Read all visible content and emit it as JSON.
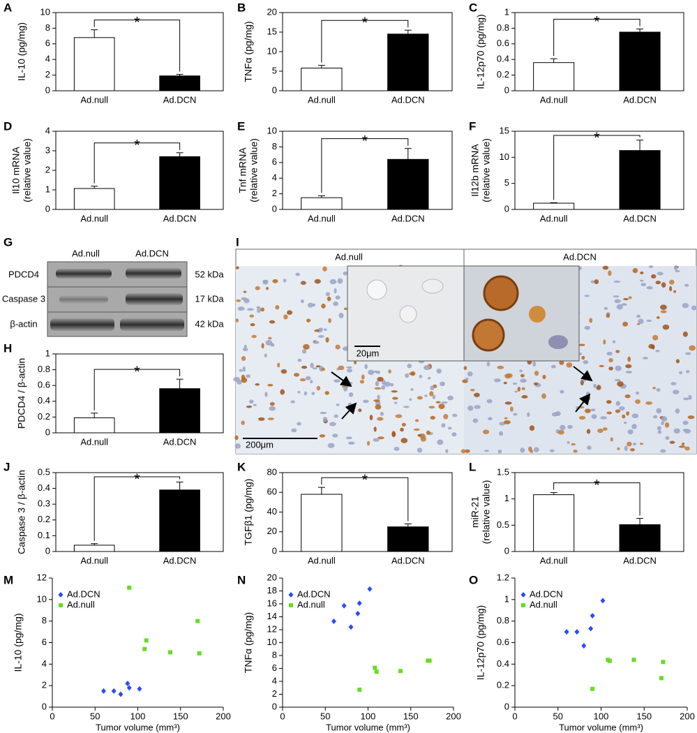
{
  "chart_data": [
    {
      "panel": "A",
      "type": "bar",
      "ylabel": [
        "IL-10 (pg/mg)"
      ],
      "categories": [
        "Ad.null",
        "Ad.DCN"
      ],
      "values": [
        6.8,
        1.9
      ],
      "errors": [
        1.0,
        0.2
      ],
      "colors": [
        "#ffffff",
        "#000000"
      ],
      "ylim": [
        0,
        10
      ],
      "yticks": [
        0,
        2,
        4,
        6,
        8,
        10
      ],
      "annotation": "*"
    },
    {
      "panel": "B",
      "type": "bar",
      "ylabel": [
        "TNFα (pg/mg)"
      ],
      "categories": [
        "Ad.null",
        "Ad.DCN"
      ],
      "values": [
        5.8,
        14.5
      ],
      "errors": [
        0.7,
        1.0
      ],
      "colors": [
        "#ffffff",
        "#000000"
      ],
      "ylim": [
        0,
        20
      ],
      "yticks": [
        0,
        5,
        10,
        15,
        20
      ],
      "annotation": "*"
    },
    {
      "panel": "C",
      "type": "bar",
      "ylabel": [
        "IL-12p70 (pg/mg)"
      ],
      "categories": [
        "Ad.null",
        "Ad.DCN"
      ],
      "values": [
        0.36,
        0.75
      ],
      "errors": [
        0.05,
        0.04
      ],
      "colors": [
        "#ffffff",
        "#000000"
      ],
      "ylim": [
        0,
        1
      ],
      "yticks": [
        0,
        0.2,
        0.4,
        0.6,
        0.8,
        1
      ],
      "annotation": "*"
    },
    {
      "panel": "D",
      "type": "bar",
      "ylabel": [
        "Il10 mRNA",
        "(relative value)"
      ],
      "categories": [
        "Ad.null",
        "Ad.DCN"
      ],
      "values": [
        1.07,
        2.7
      ],
      "errors": [
        0.12,
        0.2
      ],
      "colors": [
        "#ffffff",
        "#000000"
      ],
      "ylim": [
        0,
        4
      ],
      "yticks": [
        0,
        1,
        2,
        3,
        4
      ],
      "annotation": "*"
    },
    {
      "panel": "E",
      "type": "bar",
      "ylabel": [
        "Tnf mRNA",
        "(relative value)"
      ],
      "categories": [
        "Ad.null",
        "Ad.DCN"
      ],
      "values": [
        1.5,
        6.4
      ],
      "errors": [
        0.25,
        1.4
      ],
      "colors": [
        "#ffffff",
        "#000000"
      ],
      "ylim": [
        0,
        10
      ],
      "yticks": [
        0,
        2,
        4,
        6,
        8,
        10
      ],
      "annotation": "*"
    },
    {
      "panel": "F",
      "type": "bar",
      "ylabel": [
        "Il12b mRNA",
        "(relative value)"
      ],
      "categories": [
        "Ad.null",
        "Ad.DCN"
      ],
      "values": [
        1.2,
        11.3
      ],
      "errors": [
        0.1,
        2.0
      ],
      "colors": [
        "#ffffff",
        "#000000"
      ],
      "ylim": [
        0,
        15
      ],
      "yticks": [
        0,
        5,
        10,
        15
      ],
      "annotation": "*"
    },
    {
      "panel": "H",
      "type": "bar",
      "ylabel": [
        "PDCD4 / β-actin"
      ],
      "categories": [
        "Ad.null",
        "Ad.DCN"
      ],
      "values": [
        0.19,
        0.56
      ],
      "errors": [
        0.06,
        0.12
      ],
      "colors": [
        "#ffffff",
        "#000000"
      ],
      "ylim": [
        0,
        1
      ],
      "yticks": [
        0,
        0.2,
        0.4,
        0.6,
        0.8,
        1
      ],
      "annotation": "*"
    },
    {
      "panel": "J",
      "type": "bar",
      "ylabel": [
        "Caspase 3 / β-actin"
      ],
      "categories": [
        "Ad.null",
        "Ad.DCN"
      ],
      "values": [
        0.04,
        0.39
      ],
      "errors": [
        0.01,
        0.05
      ],
      "colors": [
        "#ffffff",
        "#000000"
      ],
      "ylim": [
        0,
        0.5
      ],
      "yticks": [
        0,
        0.1,
        0.2,
        0.3,
        0.4,
        0.5
      ],
      "annotation": "*"
    },
    {
      "panel": "K",
      "type": "bar",
      "ylabel": [
        "TGFβ1 (pg/mg)"
      ],
      "categories": [
        "Ad.null",
        "Ad.DCN"
      ],
      "values": [
        58,
        25
      ],
      "errors": [
        7,
        3
      ],
      "colors": [
        "#ffffff",
        "#000000"
      ],
      "ylim": [
        0,
        80
      ],
      "yticks": [
        0,
        20,
        40,
        60,
        80
      ],
      "annotation": "*"
    },
    {
      "panel": "L",
      "type": "bar",
      "ylabel": [
        "miR-21",
        "(relative value)"
      ],
      "categories": [
        "Ad.null",
        "Ad.DCN"
      ],
      "values": [
        1.08,
        0.51
      ],
      "errors": [
        0.04,
        0.12
      ],
      "colors": [
        "#ffffff",
        "#000000"
      ],
      "ylim": [
        0,
        1.5
      ],
      "yticks": [
        0,
        0.5,
        1,
        1.5
      ],
      "annotation": "*"
    },
    {
      "panel": "M",
      "type": "scatter",
      "ylabel": [
        "IL-10 (pg/mg)"
      ],
      "xlabel": "Tumor volume (mm³)",
      "xlim": [
        0,
        200
      ],
      "xticks": [
        0,
        50,
        100,
        150,
        200
      ],
      "ylim": [
        0,
        12
      ],
      "yticks": [
        0,
        2,
        4,
        6,
        8,
        10,
        12
      ],
      "legend": "upper left",
      "series": [
        {
          "name": "Ad.DCN",
          "color": "#2a4bff",
          "marker": "diamond",
          "x": [
            60,
            72,
            80,
            88,
            90,
            102
          ],
          "values": [
            1.5,
            1.5,
            1.2,
            2.2,
            1.8,
            1.7
          ]
        },
        {
          "name": "Ad.null",
          "color": "#66dd22",
          "marker": "square",
          "x": [
            90,
            108,
            110,
            138,
            170,
            172
          ],
          "values": [
            11.1,
            5.4,
            6.2,
            5.1,
            8.0,
            5.0
          ]
        }
      ]
    },
    {
      "panel": "N",
      "type": "scatter",
      "ylabel": [
        "TNFα (pg/mg)"
      ],
      "xlabel": "Tumor volume (mm³)",
      "xlim": [
        0,
        200
      ],
      "xticks": [
        0,
        50,
        100,
        150,
        200
      ],
      "ylim": [
        0,
        20
      ],
      "yticks": [
        0,
        2,
        4,
        6,
        8,
        10,
        12,
        14,
        16,
        18,
        20
      ],
      "legend": "upper left",
      "series": [
        {
          "name": "Ad.DCN",
          "color": "#2a4bff",
          "marker": "diamond",
          "x": [
            60,
            72,
            80,
            88,
            90,
            102
          ],
          "values": [
            13.3,
            15.7,
            12.4,
            14.5,
            16.1,
            18.3
          ]
        },
        {
          "name": "Ad.null",
          "color": "#66dd22",
          "marker": "square",
          "x": [
            90,
            108,
            110,
            138,
            170,
            172
          ],
          "values": [
            2.7,
            6.1,
            5.5,
            5.6,
            7.2,
            7.2
          ]
        }
      ]
    },
    {
      "panel": "O",
      "type": "scatter",
      "ylabel": [
        "IL-12p70 (pg/mg)"
      ],
      "xlabel": "Tumor volume (mm³)",
      "xlim": [
        0,
        200
      ],
      "xticks": [
        0,
        50,
        100,
        150,
        200
      ],
      "ylim": [
        0,
        1.2
      ],
      "yticks": [
        0,
        0.2,
        0.4,
        0.6,
        0.8,
        1,
        1.2
      ],
      "legend": "upper left",
      "series": [
        {
          "name": "Ad.DCN",
          "color": "#2a4bff",
          "marker": "diamond",
          "x": [
            60,
            72,
            80,
            88,
            90,
            102
          ],
          "values": [
            0.7,
            0.7,
            0.57,
            0.73,
            0.85,
            0.99
          ]
        },
        {
          "name": "Ad.null",
          "color": "#66dd22",
          "marker": "square",
          "x": [
            90,
            108,
            110,
            138,
            170,
            172
          ],
          "values": [
            0.17,
            0.44,
            0.43,
            0.44,
            0.27,
            0.42
          ]
        }
      ]
    }
  ],
  "blot": {
    "panel": "G",
    "lanes": [
      "Ad.null",
      "Ad.DCN"
    ],
    "proteins": [
      "PDCD4",
      "Caspase 3",
      "β-actin"
    ],
    "sizes": [
      "52 kDa",
      "17 kDa",
      "42 kDa"
    ]
  },
  "micrograph": {
    "panel": "I",
    "groups": [
      "Ad.null",
      "Ad.DCN"
    ],
    "inset_scale": "20μm",
    "scale": "200μm"
  }
}
